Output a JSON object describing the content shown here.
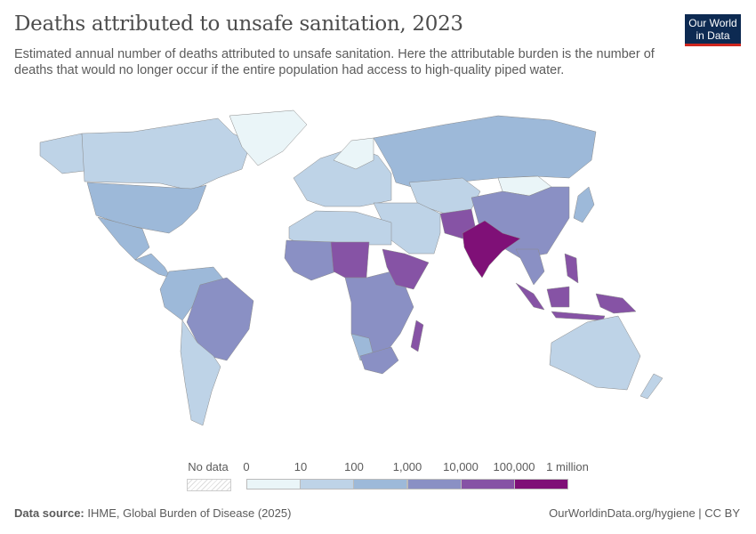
{
  "header": {
    "title": "Deaths attributed to unsafe sanitation, 2023",
    "subtitle": "Estimated annual number of deaths attributed to unsafe sanitation. Here the attributable burden is the number of deaths that would no longer occur if the entire population had access to high-quality piped water.",
    "logo_text": "Our World in Data"
  },
  "legend": {
    "no_data_label": "No data",
    "tick_labels": [
      "0",
      "10",
      "100",
      "1,000",
      "10,000",
      "100,000",
      "1 million"
    ],
    "bins": [
      {
        "from": 0,
        "to": 10,
        "color": "#eaf5f8"
      },
      {
        "from": 10,
        "to": 100,
        "color": "#bed3e7"
      },
      {
        "from": 100,
        "to": 1000,
        "color": "#9db9d9"
      },
      {
        "from": 1000,
        "to": 10000,
        "color": "#8a90c4"
      },
      {
        "from": 10000,
        "to": 100000,
        "color": "#8653a5"
      },
      {
        "from": 100000,
        "to": 1000000,
        "color": "#7f1077"
      }
    ]
  },
  "footer": {
    "source_label": "Data source:",
    "source_text": "IHME, Global Burden of Disease (2025)",
    "url_license": "OurWorldinData.org/hygiene | CC BY"
  }
}
